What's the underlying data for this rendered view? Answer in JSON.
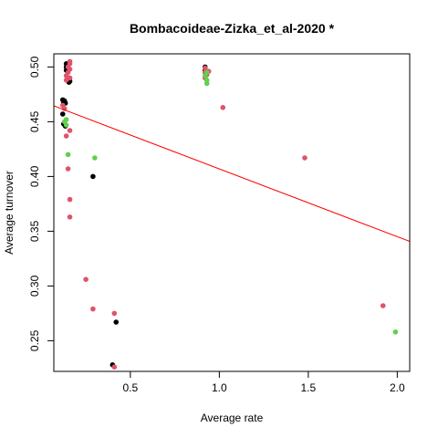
{
  "chart_data": {
    "type": "scatter",
    "title": "Bombacoideae-Zizka_et_al-2020 *",
    "xlabel": "Average rate",
    "ylabel": "Average turnover",
    "xlim": [
      0.07,
      2.07
    ],
    "ylim": [
      0.222,
      0.512
    ],
    "xticks": [
      0.5,
      1.0,
      1.5,
      2.0
    ],
    "xtick_labels": [
      "0.5",
      "1.0",
      "1.5",
      "2.0"
    ],
    "yticks": [
      0.25,
      0.3,
      0.35,
      0.4,
      0.45,
      0.5
    ],
    "ytick_labels": [
      "0.25",
      "0.30",
      "0.35",
      "0.40",
      "0.45",
      "0.50"
    ],
    "grid": false,
    "colors": {
      "black": "#000000",
      "red": "#DF536B",
      "green": "#61D04F",
      "fit": "#FF0000"
    },
    "series": [
      {
        "color": "#000000",
        "points": [
          [
            0.14,
            0.503
          ],
          [
            0.145,
            0.502
          ],
          [
            0.14,
            0.5
          ],
          [
            0.15,
            0.499
          ],
          [
            0.14,
            0.497
          ],
          [
            0.16,
            0.487
          ],
          [
            0.155,
            0.486
          ],
          [
            0.12,
            0.47
          ],
          [
            0.13,
            0.469
          ],
          [
            0.125,
            0.467
          ],
          [
            0.135,
            0.467
          ],
          [
            0.12,
            0.457
          ],
          [
            0.125,
            0.448
          ],
          [
            0.135,
            0.446
          ],
          [
            0.29,
            0.4
          ],
          [
            0.42,
            0.267
          ],
          [
            0.4,
            0.228
          ],
          [
            0.92,
            0.5
          ],
          [
            0.92,
            0.497
          ]
        ]
      },
      {
        "color": "#DF536B",
        "points": [
          [
            0.16,
            0.505
          ],
          [
            0.16,
            0.503
          ],
          [
            0.15,
            0.5
          ],
          [
            0.16,
            0.498
          ],
          [
            0.15,
            0.495
          ],
          [
            0.14,
            0.492
          ],
          [
            0.16,
            0.49
          ],
          [
            0.14,
            0.488
          ],
          [
            0.12,
            0.465
          ],
          [
            0.13,
            0.462
          ],
          [
            0.16,
            0.442
          ],
          [
            0.14,
            0.437
          ],
          [
            0.15,
            0.407
          ],
          [
            0.16,
            0.379
          ],
          [
            0.16,
            0.363
          ],
          [
            0.25,
            0.306
          ],
          [
            0.29,
            0.279
          ],
          [
            0.41,
            0.275
          ],
          [
            0.41,
            0.226
          ],
          [
            0.92,
            0.499
          ],
          [
            0.92,
            0.495
          ],
          [
            0.94,
            0.496
          ],
          [
            0.93,
            0.493
          ],
          [
            0.92,
            0.49
          ],
          [
            1.02,
            0.463
          ],
          [
            1.48,
            0.417
          ],
          [
            1.92,
            0.282
          ]
        ]
      },
      {
        "color": "#61D04F",
        "points": [
          [
            0.14,
            0.452
          ],
          [
            0.13,
            0.45
          ],
          [
            0.14,
            0.447
          ],
          [
            0.15,
            0.42
          ],
          [
            0.3,
            0.417
          ],
          [
            0.93,
            0.495
          ],
          [
            0.92,
            0.492
          ],
          [
            0.93,
            0.488
          ],
          [
            0.93,
            0.485
          ],
          [
            1.99,
            0.258
          ]
        ]
      }
    ],
    "regression_line": {
      "color": "#FF0000",
      "x": [
        0.07,
        2.07
      ],
      "y": [
        0.4645,
        0.3407
      ]
    }
  }
}
